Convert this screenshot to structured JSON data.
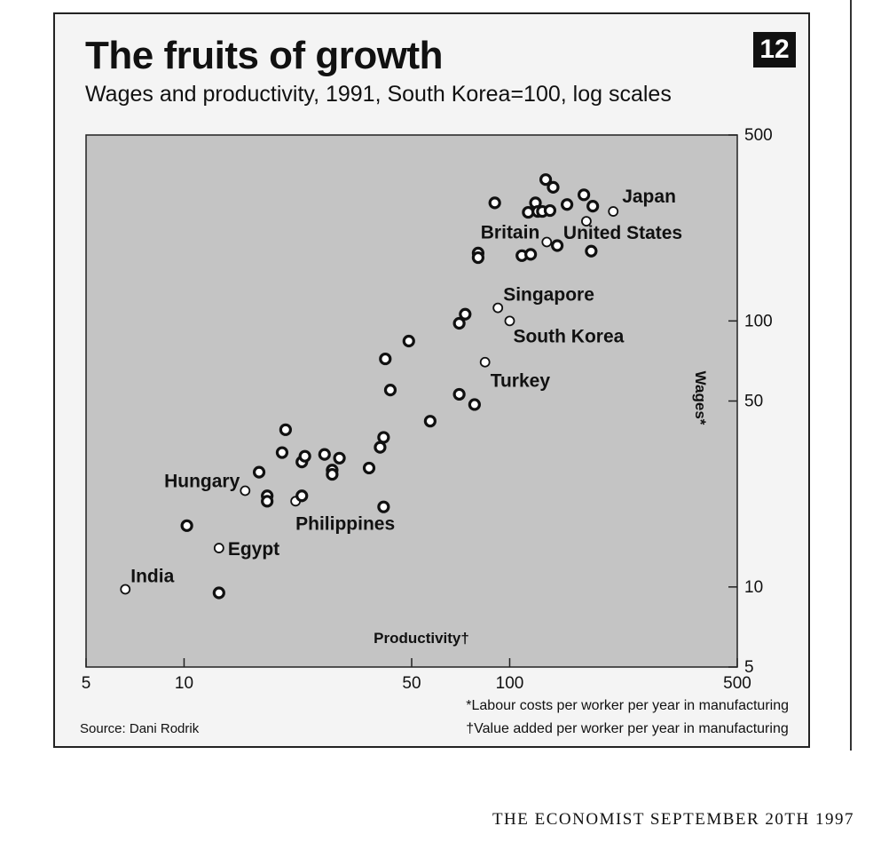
{
  "header": {
    "title": "The fruits of growth",
    "badge": "12",
    "subtitle": "Wages and productivity, 1991, South Korea=100, log scales"
  },
  "footer": {
    "source": "Source: Dani Rodrik",
    "note_wages": "*Labour costs per worker per year in manufacturing",
    "note_productivity": "†Value added per worker per year in manufacturing",
    "publication": "THE ECONOMIST SEPTEMBER 20TH 1997"
  },
  "chart_data": {
    "type": "scatter",
    "title": "The fruits of growth",
    "subtitle": "Wages and productivity, 1991, South Korea=100, log scales",
    "xlabel": "Productivity†",
    "ylabel": "Wages*",
    "x_scale": "log",
    "y_scale": "log",
    "xlim": [
      5,
      500
    ],
    "ylim": [
      5,
      500
    ],
    "x_ticks": [
      "5",
      "10",
      "50",
      "100",
      "500"
    ],
    "y_ticks": [
      "5",
      "10",
      "50",
      "100",
      "500"
    ],
    "grid": false,
    "background": "#c4c4c4",
    "points": [
      {
        "x": 6.6,
        "y": 9.8,
        "label": "India",
        "highlight": true
      },
      {
        "x": 12.8,
        "y": 14.0,
        "label": "Egypt",
        "highlight": true
      },
      {
        "x": 15.4,
        "y": 23.0,
        "label": "Hungary",
        "highlight": true
      },
      {
        "x": 22.0,
        "y": 21.0,
        "label": "Philippines",
        "highlight": true
      },
      {
        "x": 84.0,
        "y": 70.0,
        "label": "Turkey",
        "highlight": true
      },
      {
        "x": 92.0,
        "y": 112.0,
        "label": "Singapore",
        "highlight": true
      },
      {
        "x": 100.0,
        "y": 100.0,
        "label": "South Korea",
        "highlight": true
      },
      {
        "x": 130.0,
        "y": 198.0,
        "label": "Britain",
        "highlight": true
      },
      {
        "x": 172.0,
        "y": 237.0,
        "label": "United States",
        "highlight": true
      },
      {
        "x": 208.0,
        "y": 258.0,
        "label": "Japan",
        "highlight": true
      },
      {
        "x": 10.2,
        "y": 17.0,
        "label": "",
        "highlight": false
      },
      {
        "x": 12.8,
        "y": 9.5,
        "label": "",
        "highlight": false
      },
      {
        "x": 17.0,
        "y": 27.0,
        "label": "",
        "highlight": false
      },
      {
        "x": 18.0,
        "y": 22.0,
        "label": "",
        "highlight": false
      },
      {
        "x": 18.0,
        "y": 21.0,
        "label": "",
        "highlight": false
      },
      {
        "x": 20.0,
        "y": 32.0,
        "label": "",
        "highlight": false
      },
      {
        "x": 20.5,
        "y": 39.0,
        "label": "",
        "highlight": false
      },
      {
        "x": 23.0,
        "y": 29.5,
        "label": "",
        "highlight": false
      },
      {
        "x": 23.5,
        "y": 31.0,
        "label": "",
        "highlight": false
      },
      {
        "x": 23.0,
        "y": 22.0,
        "label": "",
        "highlight": false
      },
      {
        "x": 27.0,
        "y": 31.5,
        "label": "",
        "highlight": false
      },
      {
        "x": 28.5,
        "y": 27.5,
        "label": "",
        "highlight": false
      },
      {
        "x": 28.5,
        "y": 26.5,
        "label": "",
        "highlight": false
      },
      {
        "x": 30.0,
        "y": 30.5,
        "label": "",
        "highlight": false
      },
      {
        "x": 37.0,
        "y": 28.0,
        "label": "",
        "highlight": false
      },
      {
        "x": 40.0,
        "y": 33.5,
        "label": "",
        "highlight": false
      },
      {
        "x": 41.0,
        "y": 36.5,
        "label": "",
        "highlight": false
      },
      {
        "x": 41.0,
        "y": 20.0,
        "label": "",
        "highlight": false
      },
      {
        "x": 41.5,
        "y": 72.0,
        "label": "",
        "highlight": false
      },
      {
        "x": 43.0,
        "y": 55.0,
        "label": "",
        "highlight": false
      },
      {
        "x": 49.0,
        "y": 84.0,
        "label": "",
        "highlight": false
      },
      {
        "x": 57.0,
        "y": 42.0,
        "label": "",
        "highlight": false
      },
      {
        "x": 70.0,
        "y": 53.0,
        "label": "",
        "highlight": false
      },
      {
        "x": 70.0,
        "y": 98.0,
        "label": "",
        "highlight": false
      },
      {
        "x": 73.0,
        "y": 106.0,
        "label": "",
        "highlight": false
      },
      {
        "x": 78.0,
        "y": 48.5,
        "label": "",
        "highlight": false
      },
      {
        "x": 80.0,
        "y": 180.0,
        "label": "",
        "highlight": false
      },
      {
        "x": 80.0,
        "y": 173.0,
        "label": "",
        "highlight": false
      },
      {
        "x": 90.0,
        "y": 278.0,
        "label": "",
        "highlight": false
      },
      {
        "x": 109.0,
        "y": 176.0,
        "label": "",
        "highlight": false
      },
      {
        "x": 116.0,
        "y": 178.0,
        "label": "",
        "highlight": false
      },
      {
        "x": 114.0,
        "y": 256.0,
        "label": "",
        "highlight": false
      },
      {
        "x": 120.0,
        "y": 278.0,
        "label": "",
        "highlight": false
      },
      {
        "x": 122.0,
        "y": 258.0,
        "label": "",
        "highlight": false
      },
      {
        "x": 126.0,
        "y": 258.0,
        "label": "",
        "highlight": false
      },
      {
        "x": 129.0,
        "y": 340.0,
        "label": "",
        "highlight": false
      },
      {
        "x": 133.0,
        "y": 260.0,
        "label": "",
        "highlight": false
      },
      {
        "x": 136.0,
        "y": 318.0,
        "label": "",
        "highlight": false
      },
      {
        "x": 140.0,
        "y": 192.0,
        "label": "",
        "highlight": false
      },
      {
        "x": 150.0,
        "y": 274.0,
        "label": "",
        "highlight": false
      },
      {
        "x": 169.0,
        "y": 298.0,
        "label": "",
        "highlight": false
      },
      {
        "x": 178.0,
        "y": 183.0,
        "label": "",
        "highlight": false
      },
      {
        "x": 180.0,
        "y": 270.0,
        "label": "",
        "highlight": false
      }
    ]
  }
}
